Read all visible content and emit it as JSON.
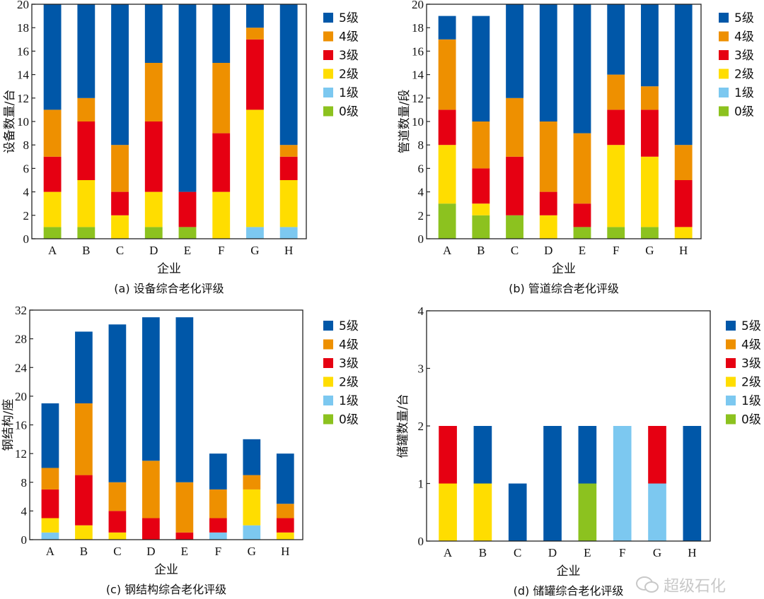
{
  "colors": {
    "0级": "#8CC21F",
    "1级": "#7CC8F0",
    "2级": "#FFDD00",
    "3级": "#E60012",
    "4级": "#EE9000",
    "5级": "#0057A8"
  },
  "watermark": "超级石化",
  "chart_data": [
    {
      "type": "bar",
      "stacked": true,
      "title": "(a) 设备综合老化评级",
      "xlabel": "企业",
      "ylabel": "设备数量/台",
      "ylim": [
        0,
        20
      ],
      "yticks": [
        0,
        2,
        4,
        6,
        8,
        10,
        12,
        14,
        16,
        18,
        20
      ],
      "legend_position": "right",
      "categories": [
        "A",
        "B",
        "C",
        "D",
        "E",
        "F",
        "G",
        "H"
      ],
      "series": [
        {
          "name": "0级",
          "values": [
            1,
            1,
            0,
            1,
            1,
            0,
            0,
            0
          ]
        },
        {
          "name": "1级",
          "values": [
            0,
            0,
            0,
            0,
            0,
            0,
            1,
            1
          ]
        },
        {
          "name": "2级",
          "values": [
            3,
            4,
            2,
            3,
            0,
            4,
            10,
            4
          ]
        },
        {
          "name": "3级",
          "values": [
            3,
            5,
            2,
            6,
            3,
            5,
            6,
            2
          ]
        },
        {
          "name": "4级",
          "values": [
            4,
            2,
            4,
            5,
            0,
            6,
            1,
            1
          ]
        },
        {
          "name": "5级",
          "values": [
            9,
            8,
            12,
            5,
            16,
            5,
            2,
            12
          ]
        }
      ]
    },
    {
      "type": "bar",
      "stacked": true,
      "title": "(b) 管道综合老化评级",
      "xlabel": "企业",
      "ylabel": "管道数量/段",
      "ylim": [
        0,
        20
      ],
      "yticks": [
        0,
        2,
        4,
        6,
        8,
        10,
        12,
        14,
        16,
        18,
        20
      ],
      "legend_position": "right",
      "categories": [
        "A",
        "B",
        "C",
        "D",
        "E",
        "F",
        "G",
        "H"
      ],
      "series": [
        {
          "name": "0级",
          "values": [
            3,
            2,
            2,
            0,
            1,
            1,
            1,
            0
          ]
        },
        {
          "name": "1级",
          "values": [
            0,
            0,
            0,
            0,
            0,
            0,
            0,
            0
          ]
        },
        {
          "name": "2级",
          "values": [
            5,
            1,
            0,
            2,
            0,
            7,
            6,
            1
          ]
        },
        {
          "name": "3级",
          "values": [
            3,
            3,
            5,
            2,
            2,
            3,
            4,
            4
          ]
        },
        {
          "name": "4级",
          "values": [
            6,
            4,
            5,
            6,
            6,
            3,
            2,
            3
          ]
        },
        {
          "name": "5级",
          "values": [
            2,
            9,
            8,
            10,
            11,
            6,
            7,
            12
          ]
        }
      ]
    },
    {
      "type": "bar",
      "stacked": true,
      "title": "(c) 钢结构综合老化评级",
      "xlabel": "企业",
      "ylabel": "钢结构/座",
      "ylim": [
        0,
        32
      ],
      "yticks": [
        0,
        4,
        8,
        12,
        16,
        20,
        24,
        28,
        32
      ],
      "legend_position": "right",
      "categories": [
        "A",
        "B",
        "C",
        "D",
        "E",
        "F",
        "G",
        "H"
      ],
      "series": [
        {
          "name": "0级",
          "values": [
            0,
            0,
            0,
            0,
            0,
            0,
            0,
            0
          ]
        },
        {
          "name": "1级",
          "values": [
            1,
            0,
            0,
            0,
            0,
            1,
            2,
            0
          ]
        },
        {
          "name": "2级",
          "values": [
            2,
            2,
            1,
            0,
            0,
            0,
            5,
            1
          ]
        },
        {
          "name": "3级",
          "values": [
            4,
            7,
            3,
            3,
            1,
            2,
            0,
            2
          ]
        },
        {
          "name": "4级",
          "values": [
            3,
            10,
            4,
            8,
            7,
            4,
            2,
            2
          ]
        },
        {
          "name": "5级",
          "values": [
            9,
            10,
            22,
            20,
            23,
            5,
            5,
            7
          ]
        }
      ]
    },
    {
      "type": "bar",
      "stacked": true,
      "title": "(d) 储罐综合老化评级",
      "xlabel": "企业",
      "ylabel": "储罐数量/台",
      "ylim": [
        0,
        4
      ],
      "yticks": [
        0,
        1,
        2,
        3,
        4
      ],
      "legend_position": "right",
      "categories": [
        "A",
        "B",
        "C",
        "D",
        "E",
        "F",
        "G",
        "H"
      ],
      "series": [
        {
          "name": "0级",
          "values": [
            0,
            0,
            0,
            0,
            1,
            0,
            0,
            0
          ]
        },
        {
          "name": "1级",
          "values": [
            0,
            0,
            0,
            0,
            0,
            2,
            1,
            0
          ]
        },
        {
          "name": "2级",
          "values": [
            1,
            1,
            0,
            0,
            0,
            0,
            0,
            0
          ]
        },
        {
          "name": "3级",
          "values": [
            1,
            0,
            0,
            0,
            0,
            0,
            1,
            0
          ]
        },
        {
          "name": "4级",
          "values": [
            0,
            0,
            0,
            0,
            0,
            0,
            0,
            0
          ]
        },
        {
          "name": "5级",
          "values": [
            0,
            1,
            1,
            2,
            1,
            0,
            0,
            2
          ]
        }
      ]
    }
  ]
}
